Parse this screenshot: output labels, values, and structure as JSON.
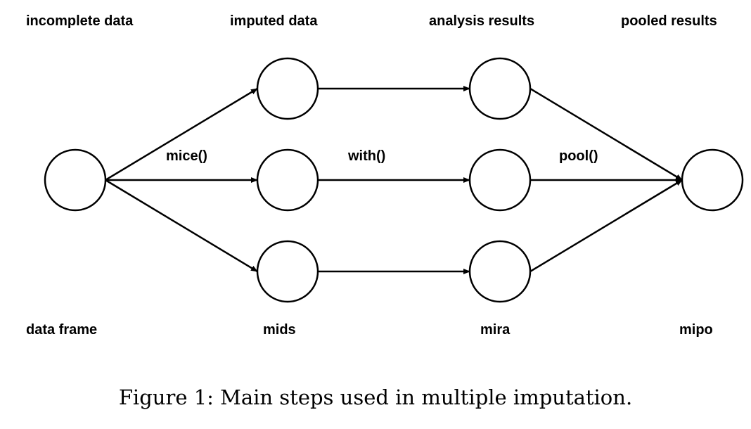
{
  "headers": {
    "incomplete": "incomplete data",
    "imputed": "imputed data",
    "analysis": "analysis results",
    "pooled": "pooled results"
  },
  "functions": {
    "mice": "mice()",
    "with": "with()",
    "pool": "pool()"
  },
  "classes": {
    "data_frame": "data frame",
    "mids": "mids",
    "mira": "mira",
    "mipo": "mipo"
  },
  "caption": "Figure 1: Main steps used in multiple imputation.",
  "stroke_color": "#000000"
}
